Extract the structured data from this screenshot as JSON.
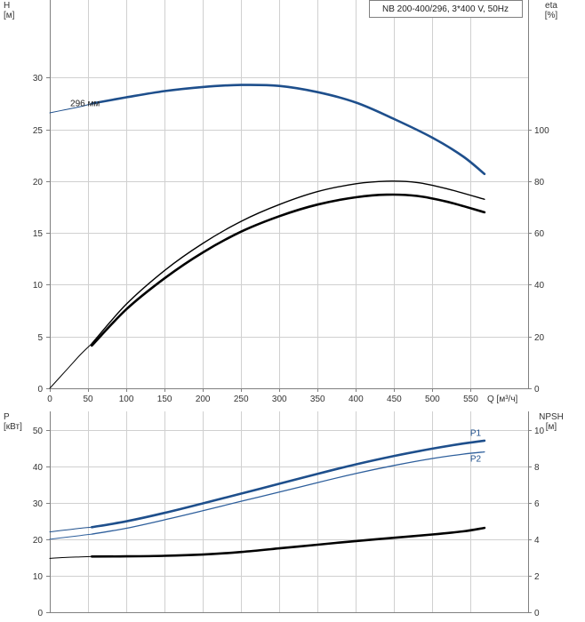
{
  "chart_data": [
    {
      "type": "line",
      "name": "head-efficiency",
      "title": "",
      "badge": "NB 200-400/296, 3*400 V, 50Hz",
      "x_axis": {
        "label": "Q [м³/ч]",
        "range": [
          0,
          625
        ],
        "ticks": [
          0,
          50,
          100,
          150,
          200,
          250,
          300,
          350,
          400,
          450,
          500,
          550
        ]
      },
      "y_left": {
        "label": [
          "H",
          "[м]"
        ],
        "range": [
          0,
          37.5
        ],
        "ticks": [
          0,
          5,
          10,
          15,
          20,
          25,
          30
        ]
      },
      "y_right": {
        "label": [
          "eta",
          "[%]"
        ],
        "range": [
          0,
          150
        ],
        "ticks": [
          0,
          20,
          40,
          60,
          80,
          100
        ]
      },
      "grid": true,
      "annotations": [
        {
          "text": "296 мм",
          "x": 50,
          "y": 27.5
        }
      ],
      "series": [
        {
          "axis": "left",
          "color": "#1e4f8c",
          "width": 1,
          "x": [
            0,
            20,
            40,
            55
          ],
          "y": [
            26.6,
            26.9,
            27.2,
            27.5
          ]
        },
        {
          "axis": "left",
          "color": "#1e4f8c",
          "width": 2.6,
          "x": [
            55,
            100,
            150,
            200,
            250,
            300,
            350,
            400,
            450,
            500,
            540,
            568
          ],
          "y": [
            27.5,
            28.1,
            28.7,
            29.1,
            29.3,
            29.2,
            28.6,
            27.6,
            26.0,
            24.2,
            22.4,
            20.7
          ]
        },
        {
          "axis": "right",
          "color": "#000000",
          "width": 1,
          "x": [
            0,
            20,
            40,
            55
          ],
          "y": [
            0,
            6.5,
            13.0,
            17.3
          ]
        },
        {
          "axis": "right",
          "color": "#000000",
          "width": 1.4,
          "x": [
            55,
            100,
            150,
            200,
            250,
            300,
            350,
            400,
            440,
            480,
            520,
            568
          ],
          "y": [
            17.3,
            32.5,
            45.5,
            56.0,
            64.5,
            71.0,
            76.0,
            79.0,
            80.0,
            79.5,
            77.0,
            73.0
          ]
        },
        {
          "axis": "right",
          "color": "#000000",
          "width": 2.6,
          "x": [
            55,
            100,
            150,
            200,
            250,
            300,
            350,
            400,
            440,
            480,
            520,
            568
          ],
          "y": [
            16.5,
            30.5,
            42.5,
            52.5,
            60.5,
            66.5,
            71.0,
            73.8,
            74.8,
            74.3,
            72.0,
            68.0
          ]
        }
      ]
    },
    {
      "type": "line",
      "name": "power-npsh",
      "title": "",
      "x_axis": {
        "label": "",
        "range": [
          0,
          625
        ],
        "ticks": [
          0,
          50,
          100,
          150,
          200,
          250,
          300,
          350,
          400,
          450,
          500,
          550
        ]
      },
      "y_left": {
        "label": [
          "P",
          "[кВт]"
        ],
        "range": [
          0,
          55
        ],
        "ticks": [
          0,
          10,
          20,
          30,
          40,
          50
        ]
      },
      "y_right": {
        "label": [
          "NPSH",
          "[м]"
        ],
        "range": [
          0,
          11
        ],
        "ticks": [
          0,
          2,
          4,
          6,
          8,
          10
        ]
      },
      "grid": true,
      "series": [
        {
          "axis": "left",
          "name": "P1",
          "color": "#1e4f8c",
          "width": 1,
          "x": [
            0,
            20,
            40,
            55
          ],
          "y": [
            22.0,
            22.5,
            23.0,
            23.3
          ]
        },
        {
          "axis": "left",
          "name": "P1",
          "color": "#1e4f8c",
          "width": 2.6,
          "x": [
            55,
            100,
            150,
            200,
            250,
            300,
            350,
            400,
            450,
            500,
            540,
            568
          ],
          "y": [
            23.3,
            24.9,
            27.2,
            29.8,
            32.5,
            35.2,
            37.9,
            40.5,
            42.8,
            44.8,
            46.2,
            47.0
          ]
        },
        {
          "axis": "left",
          "name": "P2",
          "color": "#2e5f9c",
          "width": 1,
          "x": [
            0,
            20,
            40,
            55
          ],
          "y": [
            20.0,
            20.5,
            21.0,
            21.4
          ]
        },
        {
          "axis": "left",
          "name": "P2",
          "color": "#2e5f9c",
          "width": 1.3,
          "x": [
            55,
            100,
            150,
            200,
            250,
            300,
            350,
            400,
            450,
            500,
            540,
            568
          ],
          "y": [
            21.4,
            23.0,
            25.3,
            27.8,
            30.4,
            32.9,
            35.5,
            38.0,
            40.2,
            42.1,
            43.3,
            43.9
          ]
        },
        {
          "axis": "right",
          "color": "#000000",
          "width": 1,
          "x": [
            0,
            20,
            40,
            55
          ],
          "y": [
            2.95,
            3.0,
            3.03,
            3.05
          ]
        },
        {
          "axis": "right",
          "color": "#000000",
          "width": 2.6,
          "x": [
            55,
            100,
            150,
            200,
            250,
            300,
            350,
            400,
            450,
            500,
            540,
            568
          ],
          "y": [
            3.05,
            3.06,
            3.09,
            3.16,
            3.3,
            3.5,
            3.7,
            3.9,
            4.08,
            4.26,
            4.43,
            4.62
          ]
        }
      ],
      "labels": [
        {
          "text": "P1",
          "x": 568,
          "y": 49.0,
          "color": "#1e4f8c"
        },
        {
          "text": "P2",
          "x": 568,
          "y": 42.0,
          "color": "#1e4f8c"
        }
      ]
    }
  ]
}
